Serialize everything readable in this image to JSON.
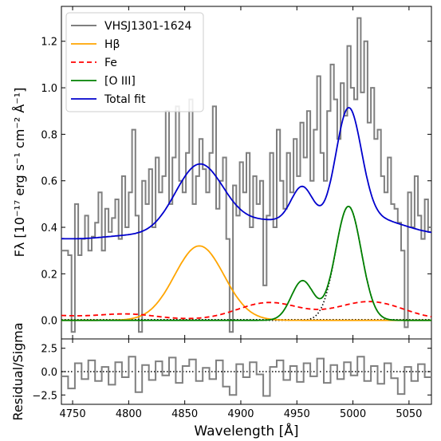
{
  "chart_data": [
    {
      "type": "line",
      "panel": "main",
      "ylabel": "Fλ [10⁻¹⁷ erg s⁻¹ cm⁻² Å⁻¹]",
      "xlim": [
        4740,
        5070
      ],
      "ylim": [
        -0.08,
        1.35
      ],
      "x_ticks": [
        4750,
        4800,
        4850,
        4900,
        4950,
        5000,
        5050
      ],
      "y_ticks": [
        0.0,
        0.2,
        0.4,
        0.6,
        0.8,
        1.0,
        1.2
      ],
      "y_tick_labels": [
        "0.0",
        "0.2",
        "0.4",
        "0.6",
        "0.8",
        "1.0",
        "1.2"
      ],
      "legend_position": "top-left",
      "series": [
        {
          "name": "VHSJ1301-1624",
          "style": "steps",
          "color": "#7f7f7f",
          "x": [
            4740,
            4746,
            4749,
            4752,
            4755,
            4758,
            4761,
            4764,
            4767,
            4770,
            4773,
            4776,
            4779,
            4782,
            4785,
            4788,
            4791,
            4794,
            4797,
            4800,
            4803,
            4806,
            4809,
            4812,
            4815,
            4818,
            4821,
            4824,
            4827,
            4830,
            4833,
            4836,
            4839,
            4842,
            4845,
            4848,
            4851,
            4854,
            4857,
            4860,
            4863,
            4866,
            4869,
            4872,
            4875,
            4878,
            4881,
            4884,
            4887,
            4890,
            4893,
            4896,
            4899,
            4902,
            4905,
            4908,
            4911,
            4914,
            4917,
            4920,
            4923,
            4926,
            4929,
            4932,
            4935,
            4938,
            4941,
            4944,
            4947,
            4950,
            4953,
            4956,
            4959,
            4962,
            4965,
            4968,
            4971,
            4974,
            4977,
            4980,
            4983,
            4986,
            4989,
            4992,
            4995,
            4998,
            5001,
            5004,
            5007,
            5010,
            5013,
            5016,
            5019,
            5022,
            5025,
            5028,
            5031,
            5034,
            5037,
            5040,
            5043,
            5046,
            5049,
            5052,
            5055,
            5058,
            5061,
            5064,
            5067,
            5070
          ],
          "y": [
            0.3,
            0.28,
            -0.05,
            0.5,
            0.28,
            0.35,
            0.45,
            0.3,
            0.36,
            0.42,
            0.55,
            0.3,
            0.48,
            0.38,
            0.44,
            0.52,
            0.35,
            0.62,
            0.4,
            0.55,
            0.82,
            0.45,
            -0.05,
            0.6,
            0.5,
            0.65,
            0.4,
            0.7,
            0.55,
            0.62,
            0.9,
            0.5,
            0.7,
            0.92,
            0.6,
            0.55,
            0.72,
            0.95,
            0.5,
            0.62,
            0.78,
            0.65,
            0.55,
            0.72,
            0.92,
            0.48,
            0.6,
            0.7,
            0.35,
            -0.05,
            0.58,
            0.45,
            0.68,
            0.55,
            0.72,
            0.4,
            0.62,
            0.5,
            0.6,
            0.15,
            0.45,
            0.72,
            0.4,
            0.82,
            0.6,
            0.48,
            0.72,
            0.55,
            0.78,
            0.62,
            0.85,
            0.7,
            0.9,
            0.6,
            0.82,
            1.05,
            0.72,
            0.6,
            0.9,
            1.1,
            0.95,
            0.78,
            1.02,
            0.88,
            1.18,
            1.0,
            0.95,
            1.3,
            0.98,
            1.2,
            0.85,
            1.0,
            0.78,
            0.82,
            0.62,
            0.55,
            0.7,
            0.5,
            0.48,
            0.42,
            0.3,
            -0.03,
            0.55,
            0.4,
            0.62,
            0.45,
            0.35,
            0.52,
            0.38,
            0.45
          ]
        },
        {
          "name": "Hβ",
          "color": "#ffa500",
          "kind": "gaussian",
          "amp": 0.32,
          "center": 4863,
          "sigma": 22
        },
        {
          "name": "Fe",
          "color": "#ff0000",
          "kind": "dashed"
        },
        {
          "name": "[O III]",
          "color": "#008000"
        },
        {
          "name": "Total fit",
          "color": "#0000cd"
        }
      ]
    },
    {
      "type": "line",
      "panel": "residual",
      "xlabel": "Wavelength [Å]",
      "ylabel": "Residual/Sigma",
      "xlim": [
        4740,
        5070
      ],
      "ylim": [
        -3.5,
        3.5
      ],
      "y_ticks": [
        -2.5,
        0.0,
        2.5
      ],
      "y_tick_labels": [
        "−2.5",
        "0.0",
        "2.5"
      ],
      "x_tick_labels": [
        "4750",
        "4800",
        "4850",
        "4900",
        "4950",
        "5000",
        "5050"
      ],
      "series": [
        {
          "name": "residual",
          "style": "steps",
          "color": "#7f7f7f",
          "x": [
            4740,
            4746,
            4752,
            4758,
            4764,
            4770,
            4776,
            4782,
            4788,
            4794,
            4800,
            4806,
            4812,
            4818,
            4824,
            4830,
            4836,
            4842,
            4848,
            4854,
            4860,
            4866,
            4872,
            4878,
            4884,
            4890,
            4896,
            4902,
            4908,
            4914,
            4920,
            4926,
            4932,
            4938,
            4944,
            4950,
            4956,
            4962,
            4968,
            4974,
            4980,
            4986,
            4992,
            4998,
            5004,
            5010,
            5016,
            5022,
            5028,
            5034,
            5040,
            5046,
            5052,
            5058,
            5064,
            5070
          ],
          "y": [
            -0.5,
            -1.8,
            0.9,
            -0.8,
            1.2,
            -1.0,
            0.5,
            -1.4,
            1.0,
            -0.6,
            1.6,
            -2.2,
            0.7,
            -0.9,
            1.1,
            -0.4,
            1.5,
            -1.2,
            0.6,
            1.3,
            -1.0,
            0.4,
            -0.8,
            1.2,
            -1.6,
            -2.5,
            0.8,
            -0.6,
            1.0,
            -0.3,
            -2.6,
            0.5,
            1.2,
            -0.9,
            0.6,
            -1.1,
            0.9,
            -0.5,
            1.4,
            -1.2,
            0.7,
            -0.8,
            1.0,
            -0.4,
            1.6,
            -1.0,
            0.6,
            -1.3,
            0.9,
            -0.7,
            -2.4,
            0.5,
            -1.0,
            0.8,
            -0.6,
            0.3
          ]
        }
      ]
    }
  ]
}
